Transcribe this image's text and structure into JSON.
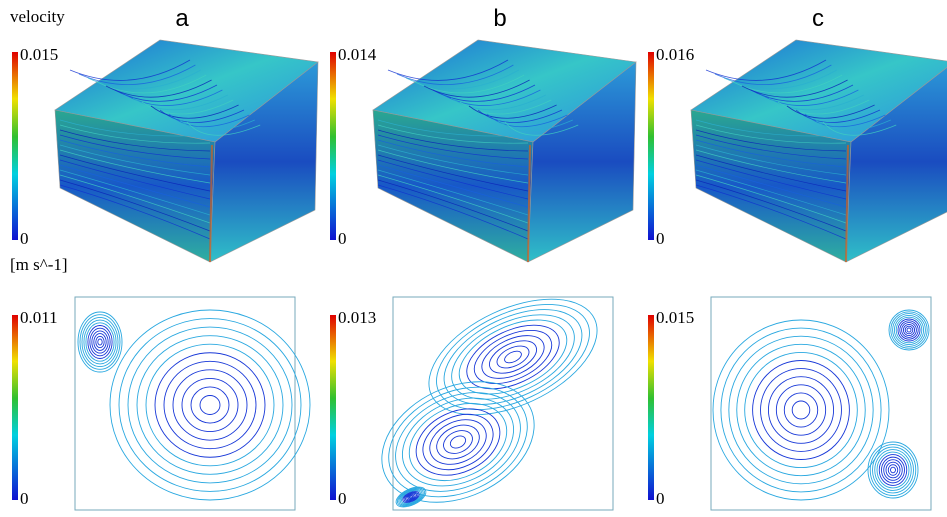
{
  "figure": {
    "quantity": "velocity",
    "unit": "[m s^-1]",
    "panels": [
      {
        "label": "a",
        "top_scale": {
          "max": "0.015",
          "min": "0"
        },
        "bottom_scale": {
          "max": "0.011",
          "min": "0"
        }
      },
      {
        "label": "b",
        "top_scale": {
          "max": "0.014",
          "min": "0"
        },
        "bottom_scale": {
          "max": "0.013",
          "min": "0"
        }
      },
      {
        "label": "c",
        "top_scale": {
          "max": "0.016",
          "min": "0"
        },
        "bottom_scale": {
          "max": "0.015",
          "min": "0"
        }
      }
    ]
  }
}
